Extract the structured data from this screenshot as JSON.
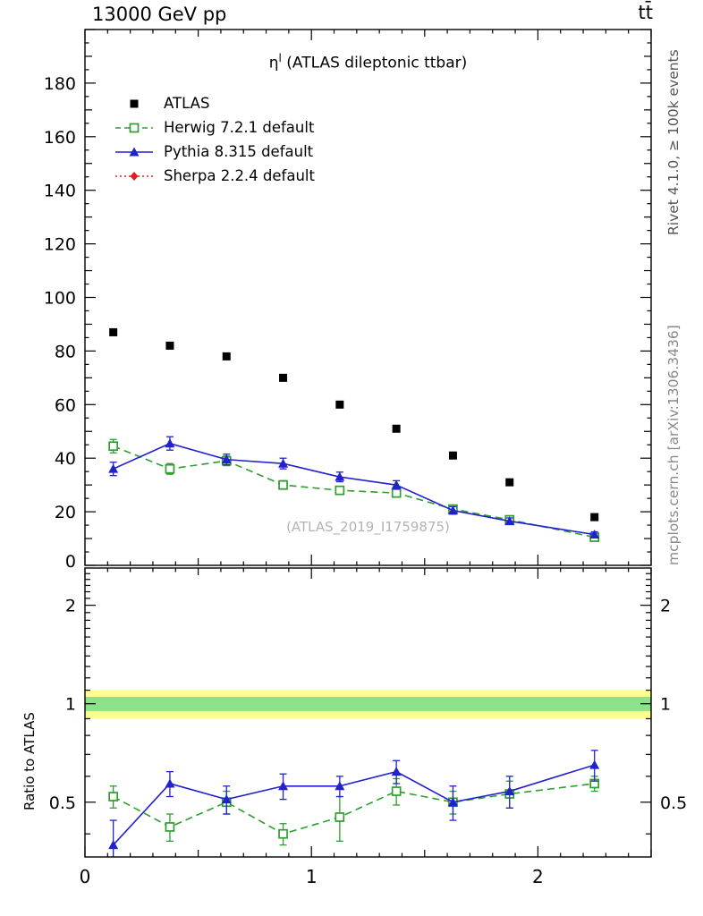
{
  "header": {
    "left": "13000 GeV pp",
    "right": "tt̄"
  },
  "plot": {
    "title_eta": "η",
    "title_sup": "l",
    "title_rest": " (ATLAS dileptonic ttbar)",
    "watermark": "(ATLAS_2019_I1759875)"
  },
  "side_labels": {
    "rivet": "Rivet 4.1.0, ≥ 100k events",
    "mcplots": "mcplots.cern.ch [arXiv:1306.3436]"
  },
  "chart_data": [
    {
      "id": "main",
      "type": "scatter",
      "title": "η^l (ATLAS dileptonic ttbar)",
      "yscale": "linear",
      "xlim": [
        0,
        2.5
      ],
      "ylim": [
        0,
        200
      ],
      "xticks": [
        0,
        1,
        2
      ],
      "xtick_labels": [
        "0",
        "1",
        "2"
      ],
      "xtick_minor_step": 0.1,
      "yticks": [
        0,
        20,
        40,
        60,
        80,
        100,
        120,
        140,
        160,
        180
      ],
      "ytick_minor_step": 5,
      "x": [
        0.125,
        0.375,
        0.625,
        0.875,
        1.125,
        1.375,
        1.625,
        1.875,
        2.25
      ],
      "series": [
        {
          "name": "ATLAS",
          "color": "#000000",
          "line": "none",
          "marker": "square-filled",
          "values": [
            87,
            82,
            78,
            70,
            60,
            51,
            41,
            31,
            18
          ],
          "errors": [
            1,
            1,
            1,
            1,
            1,
            1,
            0.8,
            0.8,
            0.8
          ]
        },
        {
          "name": "Herwig 7.2.1 default",
          "color": "#2e9e2e",
          "line": "dashed",
          "marker": "square-open",
          "values": [
            44.5,
            36,
            39,
            30,
            28,
            27,
            21,
            17,
            10.5
          ],
          "errors": [
            2.5,
            2,
            1.8,
            1.6,
            1.5,
            1.4,
            1.2,
            1,
            0.8
          ]
        },
        {
          "name": "Pythia 8.315 default",
          "color": "#2222cc",
          "line": "solid",
          "marker": "triangle-filled",
          "values": [
            36,
            45.5,
            39.5,
            38,
            33,
            30,
            20.5,
            16.5,
            11.5
          ],
          "errors": [
            2.5,
            2.5,
            2,
            2,
            1.8,
            1.6,
            1.4,
            1.2,
            1
          ]
        },
        {
          "name": "Sherpa 2.2.4 default",
          "color": "#e02020",
          "line": "dotted",
          "marker": "diamond-filled",
          "values": [],
          "errors": []
        }
      ]
    },
    {
      "id": "ratio",
      "type": "scatter",
      "ylabel": "Ratio to ATLAS",
      "yscale": "log",
      "xlim": [
        0,
        2.5
      ],
      "ylim": [
        0.34,
        2.6
      ],
      "xticks": [
        0,
        1,
        2
      ],
      "xtick_labels": [
        "0",
        "1",
        "2"
      ],
      "xtick_minor_step": 0.1,
      "yticks": [
        0.5,
        1,
        2
      ],
      "ytick_labels": [
        "0.5",
        "1",
        "2"
      ],
      "yticks_minor": [
        0.4,
        0.6,
        0.7,
        0.8,
        0.9,
        1.1,
        1.2,
        1.3,
        1.4,
        1.5,
        1.6,
        1.7,
        1.8,
        1.9,
        2.1,
        2.2,
        2.3,
        2.4,
        2.5
      ],
      "bands": [
        {
          "lo": 0.9,
          "hi": 1.1,
          "color": "#ffff8c"
        },
        {
          "lo": 0.95,
          "hi": 1.05,
          "color": "#8be28b"
        }
      ],
      "x": [
        0.125,
        0.375,
        0.625,
        0.875,
        1.125,
        1.375,
        1.625,
        1.875,
        2.25
      ],
      "series": [
        {
          "name": "Herwig 7.2.1 default",
          "color": "#2e9e2e",
          "line": "dashed",
          "marker": "square-open",
          "values": [
            0.52,
            0.42,
            0.5,
            0.4,
            0.45,
            0.54,
            0.5,
            0.53,
            0.57
          ],
          "errors": [
            0.04,
            0.04,
            0.04,
            0.03,
            0.07,
            0.05,
            0.04,
            0.05,
            0.03
          ]
        },
        {
          "name": "Pythia 8.315 default",
          "color": "#2222cc",
          "line": "solid",
          "marker": "triangle-filled",
          "values": [
            0.37,
            0.57,
            0.51,
            0.56,
            0.56,
            0.62,
            0.5,
            0.54,
            0.65
          ],
          "errors": [
            0.07,
            0.05,
            0.05,
            0.05,
            0.04,
            0.05,
            0.06,
            0.06,
            0.07
          ]
        }
      ]
    }
  ]
}
